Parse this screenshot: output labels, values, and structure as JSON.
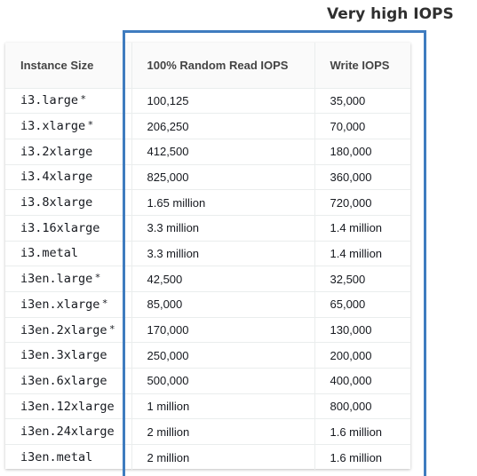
{
  "callout": {
    "title": "Very high IOPS",
    "box_color": "#3f7cbf"
  },
  "table": {
    "headers": [
      "Instance Size",
      "100% Random Read IOPS",
      "Write IOPS"
    ],
    "rows": [
      {
        "instance": "i3.large",
        "star": "*",
        "read": "100,125",
        "write": "35,000"
      },
      {
        "instance": "i3.xlarge",
        "star": "*",
        "read": "206,250",
        "write": "70,000"
      },
      {
        "instance": "i3.2xlarge",
        "star": "",
        "read": "412,500",
        "write": "180,000"
      },
      {
        "instance": "i3.4xlarge",
        "star": "",
        "read": "825,000",
        "write": "360,000"
      },
      {
        "instance": "i3.8xlarge",
        "star": "",
        "read": "1.65 million",
        "write": "720,000"
      },
      {
        "instance": "i3.16xlarge",
        "star": "",
        "read": "3.3 million",
        "write": "1.4 million"
      },
      {
        "instance": "i3.metal",
        "star": "",
        "read": "3.3 million",
        "write": "1.4 million"
      },
      {
        "instance": "i3en.large",
        "star": "*",
        "read": "42,500",
        "write": "32,500"
      },
      {
        "instance": "i3en.xlarge",
        "star": "*",
        "read": "85,000",
        "write": "65,000"
      },
      {
        "instance": "i3en.2xlarge",
        "star": "*",
        "read": "170,000",
        "write": "130,000"
      },
      {
        "instance": "i3en.3xlarge",
        "star": "",
        "read": "250,000",
        "write": "200,000"
      },
      {
        "instance": "i3en.6xlarge",
        "star": "",
        "read": "500,000",
        "write": "400,000"
      },
      {
        "instance": "i3en.12xlarge",
        "star": "",
        "read": "1 million",
        "write": "800,000"
      },
      {
        "instance": "i3en.24xlarge",
        "star": "",
        "read": "2 million",
        "write": "1.6 million"
      },
      {
        "instance": "i3en.metal",
        "star": "",
        "read": "2 million",
        "write": "1.6 million"
      }
    ]
  }
}
